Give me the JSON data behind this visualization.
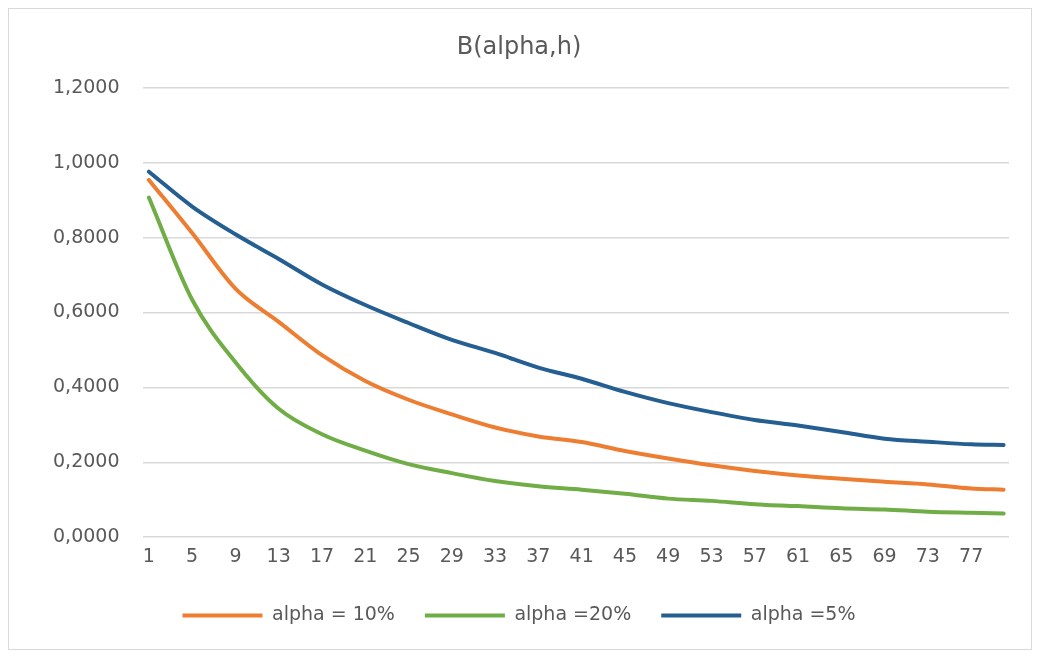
{
  "chart_data": {
    "type": "line",
    "title": "B(alpha,h)",
    "x": [
      1,
      5,
      9,
      13,
      17,
      21,
      25,
      29,
      33,
      37,
      41,
      45,
      49,
      53,
      57,
      61,
      65,
      69,
      73,
      77,
      80
    ],
    "xlim": [
      0.5,
      80.5
    ],
    "xticks": [
      1,
      5,
      9,
      13,
      17,
      21,
      25,
      29,
      33,
      37,
      41,
      45,
      49,
      53,
      57,
      61,
      65,
      69,
      73,
      77
    ],
    "ylim": [
      0,
      1.2
    ],
    "yticks": [
      {
        "value": 0,
        "label": "0,0000"
      },
      {
        "value": 0.2,
        "label": "0,2000"
      },
      {
        "value": 0.4,
        "label": "0,4000"
      },
      {
        "value": 0.6,
        "label": "0,6000"
      },
      {
        "value": 0.8,
        "label": "0,8000"
      },
      {
        "value": 1.0,
        "label": "1,0000"
      },
      {
        "value": 1.2,
        "label": "1,2000"
      }
    ],
    "series": [
      {
        "name": "alpha = 10%",
        "color": "#ed7d31",
        "values": [
          0.954,
          0.812,
          0.664,
          0.575,
          0.486,
          0.417,
          0.367,
          0.328,
          0.293,
          0.269,
          0.254,
          0.23,
          0.21,
          0.192,
          0.177,
          0.165,
          0.156,
          0.148,
          0.141,
          0.13,
          0.127
        ]
      },
      {
        "name": "alpha =20%",
        "color": "#70ad47",
        "values": [
          0.907,
          0.634,
          0.467,
          0.343,
          0.275,
          0.231,
          0.195,
          0.171,
          0.15,
          0.136,
          0.127,
          0.116,
          0.103,
          0.097,
          0.088,
          0.083,
          0.077,
          0.074,
          0.068,
          0.065,
          0.063
        ]
      },
      {
        "name": "alpha =5%",
        "color": "#255e91",
        "values": [
          0.976,
          0.883,
          0.809,
          0.743,
          0.675,
          0.62,
          0.572,
          0.527,
          0.492,
          0.453,
          0.423,
          0.388,
          0.358,
          0.334,
          0.313,
          0.298,
          0.281,
          0.263,
          0.255,
          0.248,
          0.246
        ]
      }
    ],
    "grid": "y",
    "legend": "bottom",
    "marker": "none",
    "line_style": "solid"
  }
}
